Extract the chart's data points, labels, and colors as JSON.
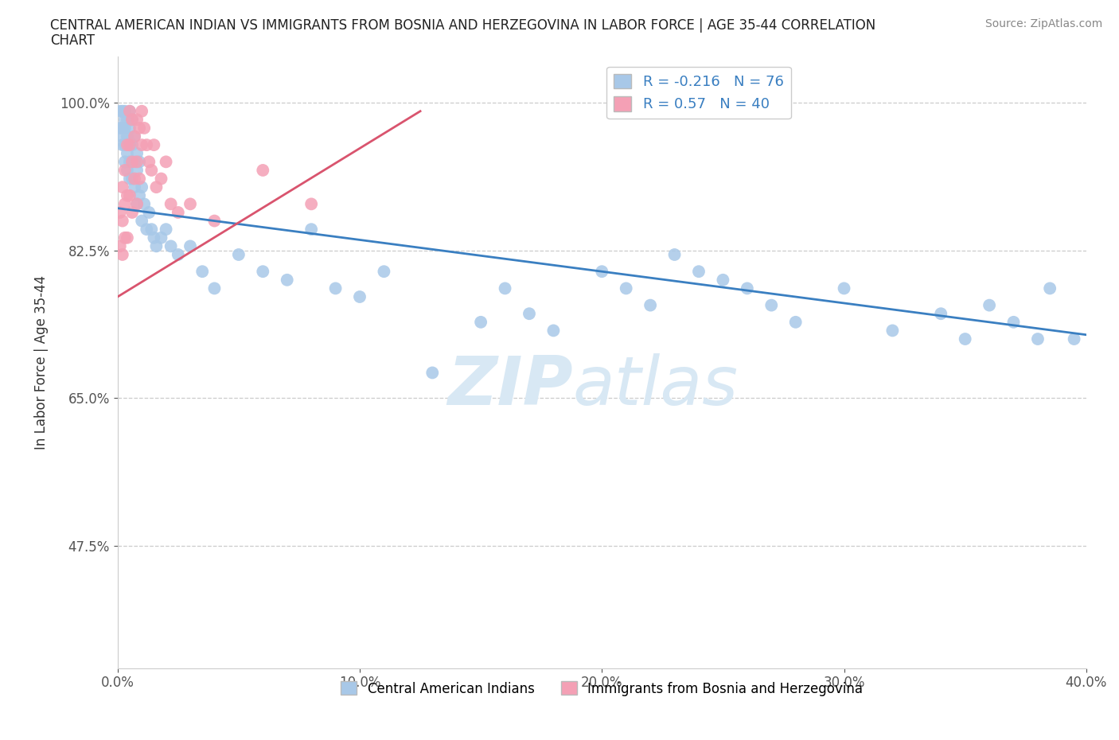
{
  "title_line1": "CENTRAL AMERICAN INDIAN VS IMMIGRANTS FROM BOSNIA AND HERZEGOVINA IN LABOR FORCE | AGE 35-44 CORRELATION",
  "title_line2": "CHART",
  "source": "Source: ZipAtlas.com",
  "xlabel_blue": "Central American Indians",
  "xlabel_pink": "Immigrants from Bosnia and Herzegovina",
  "ylabel": "In Labor Force | Age 35-44",
  "xmin": 0.0,
  "xmax": 0.4,
  "ymin": 0.33,
  "ymax": 1.055,
  "yticks": [
    0.475,
    0.65,
    0.825,
    1.0
  ],
  "ytick_labels": [
    "47.5%",
    "65.0%",
    "82.5%",
    "100.0%"
  ],
  "xticks": [
    0.0,
    0.1,
    0.2,
    0.3,
    0.4
  ],
  "xtick_labels": [
    "0.0%",
    "10.0%",
    "20.0%",
    "30.0%",
    "40.0%"
  ],
  "blue_R": -0.216,
  "blue_N": 76,
  "pink_R": 0.57,
  "pink_N": 40,
  "blue_color": "#a8c8e8",
  "blue_line_color": "#3a7fc1",
  "pink_color": "#f4a0b5",
  "pink_line_color": "#d9546e",
  "legend_label_color": "#3a7fc1",
  "watermark_color": "#d8e8f4",
  "blue_trend_x0": 0.0,
  "blue_trend_y0": 0.875,
  "blue_trend_x1": 0.4,
  "blue_trend_y1": 0.725,
  "pink_trend_x0": 0.0,
  "pink_trend_y0": 0.77,
  "pink_trend_x1": 0.125,
  "pink_trend_y1": 0.99,
  "blue_scatter_x": [
    0.001,
    0.001,
    0.002,
    0.002,
    0.002,
    0.002,
    0.003,
    0.003,
    0.003,
    0.003,
    0.003,
    0.004,
    0.004,
    0.004,
    0.004,
    0.005,
    0.005,
    0.005,
    0.005,
    0.005,
    0.006,
    0.006,
    0.006,
    0.007,
    0.007,
    0.007,
    0.008,
    0.008,
    0.008,
    0.009,
    0.009,
    0.01,
    0.01,
    0.011,
    0.012,
    0.013,
    0.014,
    0.015,
    0.016,
    0.018,
    0.02,
    0.022,
    0.025,
    0.03,
    0.035,
    0.04,
    0.05,
    0.06,
    0.07,
    0.08,
    0.09,
    0.1,
    0.11,
    0.13,
    0.15,
    0.16,
    0.17,
    0.18,
    0.2,
    0.21,
    0.22,
    0.23,
    0.24,
    0.25,
    0.26,
    0.27,
    0.28,
    0.3,
    0.32,
    0.34,
    0.35,
    0.36,
    0.37,
    0.38,
    0.385,
    0.395
  ],
  "blue_scatter_y": [
    0.99,
    0.97,
    0.99,
    0.97,
    0.96,
    0.95,
    0.99,
    0.98,
    0.97,
    0.95,
    0.93,
    0.98,
    0.96,
    0.94,
    0.92,
    0.99,
    0.97,
    0.95,
    0.93,
    0.91,
    0.98,
    0.95,
    0.91,
    0.96,
    0.93,
    0.9,
    0.94,
    0.92,
    0.88,
    0.93,
    0.89,
    0.9,
    0.86,
    0.88,
    0.85,
    0.87,
    0.85,
    0.84,
    0.83,
    0.84,
    0.85,
    0.83,
    0.82,
    0.83,
    0.8,
    0.78,
    0.82,
    0.8,
    0.79,
    0.85,
    0.78,
    0.77,
    0.8,
    0.68,
    0.74,
    0.78,
    0.75,
    0.73,
    0.8,
    0.78,
    0.76,
    0.82,
    0.8,
    0.79,
    0.78,
    0.76,
    0.74,
    0.78,
    0.73,
    0.75,
    0.72,
    0.76,
    0.74,
    0.72,
    0.78,
    0.72
  ],
  "pink_scatter_x": [
    0.001,
    0.001,
    0.002,
    0.002,
    0.002,
    0.003,
    0.003,
    0.003,
    0.004,
    0.004,
    0.004,
    0.005,
    0.005,
    0.005,
    0.006,
    0.006,
    0.006,
    0.007,
    0.007,
    0.008,
    0.008,
    0.008,
    0.009,
    0.009,
    0.01,
    0.01,
    0.011,
    0.012,
    0.013,
    0.014,
    0.015,
    0.016,
    0.018,
    0.02,
    0.022,
    0.025,
    0.03,
    0.04,
    0.06,
    0.08
  ],
  "pink_scatter_y": [
    0.87,
    0.83,
    0.9,
    0.86,
    0.82,
    0.92,
    0.88,
    0.84,
    0.95,
    0.89,
    0.84,
    0.99,
    0.95,
    0.89,
    0.98,
    0.93,
    0.87,
    0.96,
    0.91,
    0.98,
    0.93,
    0.88,
    0.97,
    0.91,
    0.99,
    0.95,
    0.97,
    0.95,
    0.93,
    0.92,
    0.95,
    0.9,
    0.91,
    0.93,
    0.88,
    0.87,
    0.88,
    0.86,
    0.92,
    0.88
  ]
}
